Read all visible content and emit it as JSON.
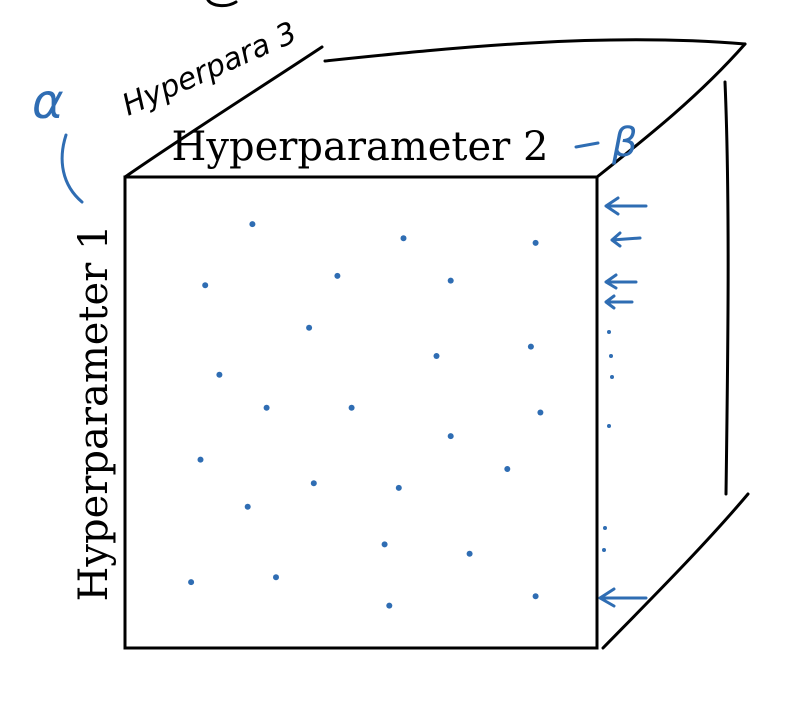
{
  "labels": {
    "axis_top": "Hyperparameter 2",
    "axis_left": "Hyperparameter 1",
    "axis_depth_handwritten": "Hyperpara 3",
    "alpha_symbol": "α",
    "beta_symbol": "β"
  },
  "colors": {
    "ink_black": "#000000",
    "ink_blue": "#2f6db3",
    "background": "#ffffff"
  },
  "samples": [
    {
      "h2": 0.27,
      "h1": 0.9
    },
    {
      "h2": 0.59,
      "h1": 0.87
    },
    {
      "h2": 0.87,
      "h1": 0.86
    },
    {
      "h2": 0.17,
      "h1": 0.77
    },
    {
      "h2": 0.45,
      "h1": 0.79
    },
    {
      "h2": 0.69,
      "h1": 0.78
    },
    {
      "h2": 0.39,
      "h1": 0.68
    },
    {
      "h2": 0.66,
      "h1": 0.62
    },
    {
      "h2": 0.86,
      "h1": 0.64
    },
    {
      "h2": 0.2,
      "h1": 0.58
    },
    {
      "h2": 0.3,
      "h1": 0.51
    },
    {
      "h2": 0.48,
      "h1": 0.51
    },
    {
      "h2": 0.88,
      "h1": 0.5
    },
    {
      "h2": 0.69,
      "h1": 0.45
    },
    {
      "h2": 0.16,
      "h1": 0.4
    },
    {
      "h2": 0.4,
      "h1": 0.35
    },
    {
      "h2": 0.58,
      "h1": 0.34
    },
    {
      "h2": 0.81,
      "h1": 0.38
    },
    {
      "h2": 0.26,
      "h1": 0.3
    },
    {
      "h2": 0.55,
      "h1": 0.22
    },
    {
      "h2": 0.73,
      "h1": 0.2
    },
    {
      "h2": 0.14,
      "h1": 0.14
    },
    {
      "h2": 0.32,
      "h1": 0.15
    },
    {
      "h2": 0.56,
      "h1": 0.09
    },
    {
      "h2": 0.87,
      "h1": 0.11
    }
  ]
}
